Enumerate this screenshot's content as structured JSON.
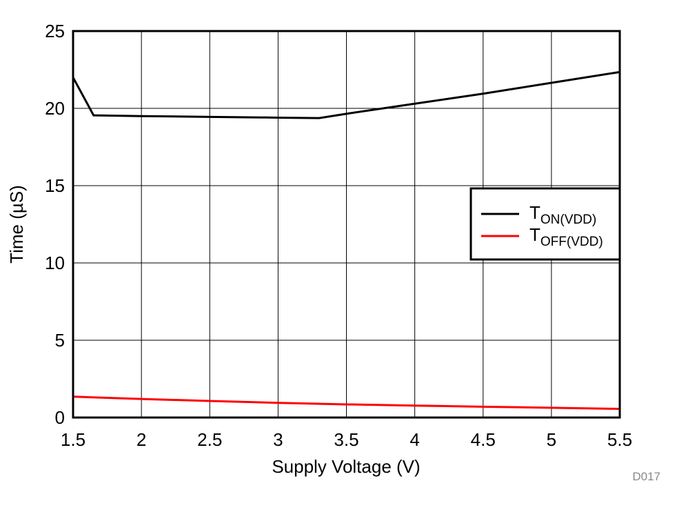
{
  "chart_data": {
    "type": "line",
    "title": "",
    "xlabel": "Supply Voltage (V)",
    "ylabel": "Time (µS)",
    "xlim": [
      1.5,
      5.5
    ],
    "ylim": [
      0,
      25
    ],
    "xticks": [
      "1.5",
      "2",
      "2.5",
      "3",
      "3.5",
      "4",
      "4.5",
      "5",
      "5.5"
    ],
    "yticks": [
      "0",
      "5",
      "10",
      "15",
      "20",
      "25"
    ],
    "grid": true,
    "legend_placement": "right",
    "watermark": "D017",
    "series": [
      {
        "name": "TON(VDD)",
        "color": "#000000",
        "x": [
          1.5,
          1.65,
          2.0,
          2.5,
          3.0,
          3.3,
          3.5,
          4.0,
          4.5,
          5.0,
          5.5
        ],
        "y": [
          22.0,
          19.55,
          19.5,
          19.45,
          19.4,
          19.37,
          19.65,
          20.3,
          20.95,
          21.65,
          22.35
        ]
      },
      {
        "name": "TOFF(VDD)",
        "color": "#ff0000",
        "x": [
          1.5,
          2.0,
          2.5,
          3.0,
          3.5,
          4.0,
          4.5,
          5.0,
          5.5
        ],
        "y": [
          1.35,
          1.2,
          1.07,
          0.95,
          0.85,
          0.77,
          0.7,
          0.63,
          0.56
        ]
      }
    ]
  }
}
